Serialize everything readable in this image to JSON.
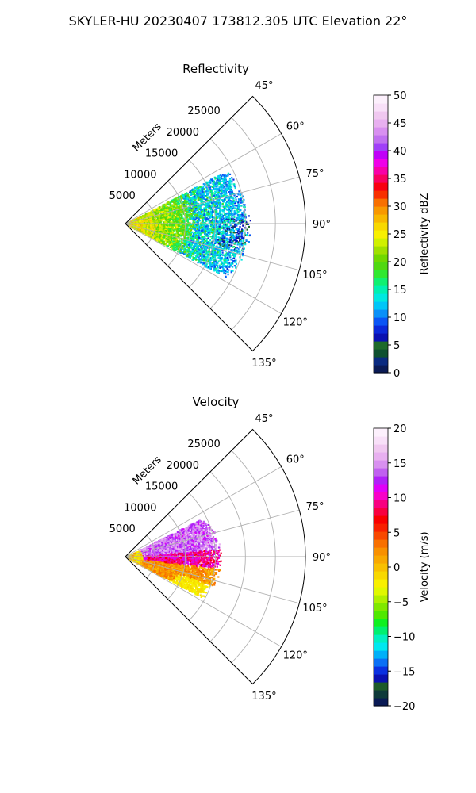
{
  "figure": {
    "title": "SKYLER-HU  20230407  173812.305 UTC Elevation 22°"
  },
  "chart_data": [
    {
      "type": "heatmap",
      "subtype": "polar-sector-ppi",
      "title": "Reflectivity",
      "radial_axis": {
        "label": "Meters",
        "ticks": [
          5000,
          10000,
          15000,
          20000,
          25000
        ],
        "tick_labels": [
          "5000",
          "10000",
          "15000",
          "20000",
          "25000"
        ],
        "range": [
          0,
          30000
        ]
      },
      "angular_axis": {
        "range_deg": [
          45,
          135
        ],
        "ticks": [
          45,
          60,
          75,
          90,
          105,
          120,
          135
        ],
        "tick_labels": [
          "45°",
          "60°",
          "75°",
          "90°",
          "105°",
          "120°",
          "135°"
        ]
      },
      "grid": true,
      "colorbar": {
        "label": "Reflectivity dBZ",
        "range": [
          0,
          50
        ],
        "ticks": [
          0,
          5,
          10,
          15,
          20,
          25,
          30,
          35,
          40,
          45,
          50
        ],
        "tick_labels": [
          "0",
          "5",
          "10",
          "15",
          "20",
          "25",
          "30",
          "35",
          "40",
          "45",
          "50"
        ],
        "colors": [
          "#0a1a55",
          "#0a2a80",
          "#0f5030",
          "#1e6a2a",
          "#0a10b0",
          "#0a28d8",
          "#0a55f5",
          "#0a90f8",
          "#00c6f8",
          "#00e8e0",
          "#00f0b0",
          "#10f070",
          "#30e830",
          "#50d810",
          "#70d800",
          "#a0e000",
          "#d0f000",
          "#f8f000",
          "#f8d800",
          "#f8b800",
          "#f89800",
          "#f87000",
          "#f83000",
          "#f80010",
          "#f80060",
          "#f800a8",
          "#f000e8",
          "#c000f8",
          "#a040f8",
          "#c070f0",
          "#d890f0",
          "#e8b0f0",
          "#f0c8f0",
          "#f8e0f8",
          "#fcf0fc"
        ]
      },
      "data_extent": {
        "max_range_m": 21000,
        "azimuth_deg": [
          62,
          118
        ]
      }
    },
    {
      "type": "heatmap",
      "subtype": "polar-sector-ppi",
      "title": "Velocity",
      "radial_axis": {
        "label": "Meters",
        "ticks": [
          5000,
          10000,
          15000,
          20000,
          25000
        ],
        "tick_labels": [
          "5000",
          "10000",
          "15000",
          "20000",
          "25000"
        ],
        "range": [
          0,
          30000
        ]
      },
      "angular_axis": {
        "range_deg": [
          45,
          135
        ],
        "ticks": [
          45,
          60,
          75,
          90,
          105,
          120,
          135
        ],
        "tick_labels": [
          "45°",
          "60°",
          "75°",
          "90°",
          "105°",
          "120°",
          "135°"
        ]
      },
      "grid": true,
      "colorbar": {
        "label": "Velocity (m/s)",
        "range": [
          -20,
          20
        ],
        "ticks": [
          -20,
          -15,
          -10,
          -5,
          0,
          5,
          10,
          15,
          20
        ],
        "tick_labels": [
          "−20",
          "−15",
          "−10",
          "−5",
          "0",
          "5",
          "10",
          "15",
          "20"
        ],
        "colors": [
          "#0a1a55",
          "#0f3a3a",
          "#1e5a2a",
          "#0a10b0",
          "#0a30e0",
          "#0a70f5",
          "#00b0f8",
          "#00e8f0",
          "#00f0c0",
          "#00f070",
          "#10f020",
          "#50e800",
          "#80e800",
          "#b0f000",
          "#e0f800",
          "#f8f000",
          "#f8d800",
          "#f8c000",
          "#f8a800",
          "#f89000",
          "#f87000",
          "#f84800",
          "#f82000",
          "#f80000",
          "#f80040",
          "#f80080",
          "#f800c8",
          "#e000f8",
          "#b020f8",
          "#c060f0",
          "#d890f0",
          "#e8b0f0",
          "#f0c8f0",
          "#f8e0f8",
          "#fcf0fc"
        ]
      },
      "data_extent": {
        "max_range_m": 16000,
        "azimuth_deg": [
          63,
          118
        ]
      }
    }
  ]
}
